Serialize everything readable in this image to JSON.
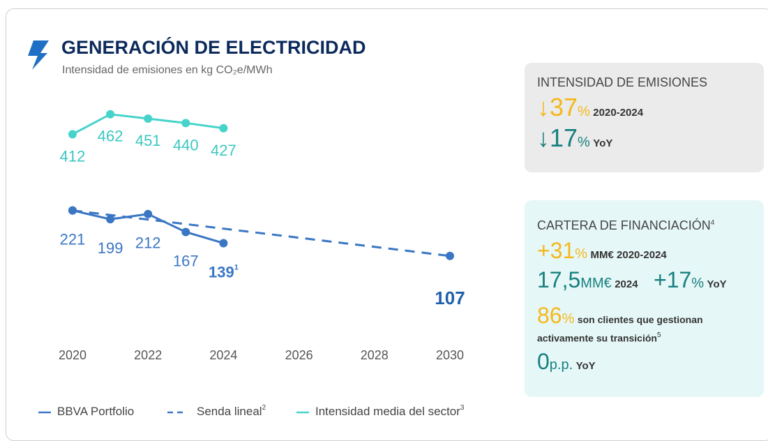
{
  "header": {
    "title": "GENERACIÓN DE ELECTRICIDAD",
    "subtitle": "Intensidad de emisiones en kg CO₂e/MWh"
  },
  "chart_data": {
    "type": "line",
    "xlim": [
      2020,
      2030
    ],
    "xticks": [
      2020,
      2022,
      2024,
      2026,
      2028,
      2030
    ],
    "ylim": [
      0,
      500
    ],
    "series": [
      {
        "name": "BBVA Portfolio",
        "color": "#3a76c4",
        "linestyle": "solid",
        "x": [
          2020,
          2021,
          2022,
          2023,
          2024
        ],
        "values": [
          221,
          199,
          212,
          167,
          139
        ],
        "label_note": {
          "index": 4,
          "text": "1"
        }
      },
      {
        "name": "Senda lineal",
        "note": "2",
        "color": "#3a76c4",
        "linestyle": "dashed",
        "x": [
          2020,
          2030
        ],
        "values": [
          221,
          107
        ],
        "labeled": [
          1
        ]
      },
      {
        "name": "Intensidad media del sector",
        "note": "3",
        "color": "#45d3cb",
        "linestyle": "solid",
        "x": [
          2020,
          2021,
          2022,
          2023,
          2024
        ],
        "values": [
          412,
          462,
          451,
          440,
          427
        ]
      }
    ]
  },
  "panels": [
    {
      "title": "INTENSIDAD DE EMISIONES",
      "rows": [
        {
          "value": "↓37",
          "unit": "%",
          "text": "2020-2024"
        },
        {
          "value": "↓17",
          "unit": "%",
          "text": "YoY"
        }
      ]
    },
    {
      "title": "CARTERA DE FINANCIACIÓN",
      "note": "4",
      "rows": [
        {
          "value": "+31",
          "unit": "%",
          "text": "MM€ 2020-2024"
        },
        {
          "value": "17,5",
          "unit": "MM€",
          "text": "2024",
          "value2": "+17",
          "unit2": "%",
          "text2": "YoY"
        },
        {
          "value": "86",
          "unit": "%",
          "text": "son clientes que gestionan activamente su transición",
          "note": "5"
        },
        {
          "value": "0",
          "unit": "p.p.",
          "text": "YoY"
        }
      ]
    }
  ]
}
